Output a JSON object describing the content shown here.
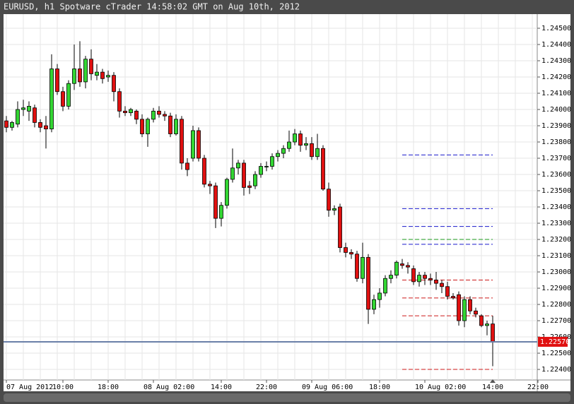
{
  "chart_data": {
    "type": "candlestick",
    "title": "EURUSD, h1 Spotware cTrader 14:58:02 GMT on Aug 10th, 2012",
    "categories": [
      "07 Aug 2012",
      null,
      null,
      null,
      null,
      null,
      null,
      null,
      null,
      null,
      "10:00",
      null,
      null,
      null,
      null,
      null,
      null,
      null,
      "18:00",
      null,
      null,
      null,
      null,
      null,
      null,
      null,
      "08 Aug 02:00",
      null,
      null,
      null,
      null,
      null,
      null,
      null,
      null,
      null,
      null,
      null,
      "14:00",
      null,
      null,
      null,
      null,
      null,
      null,
      null,
      "22:00",
      null,
      null,
      null,
      null,
      null,
      null,
      null,
      "09 Aug 06:00",
      null,
      null,
      null,
      null,
      null,
      null,
      null,
      null,
      null,
      null,
      null,
      "18:00",
      null,
      null,
      null,
      null,
      null,
      null,
      null,
      "10 Aug 02:00",
      null,
      null,
      null,
      null,
      null,
      null,
      null,
      null,
      null,
      null,
      null,
      "14:00",
      null,
      null,
      null,
      null,
      null,
      null,
      null,
      "22:00"
    ],
    "open": [
      1.2393,
      1.2389,
      1.2391,
      1.24,
      1.2399,
      1.2401,
      1.2392,
      1.239,
      1.2388,
      1.2425,
      1.2411,
      1.2402,
      1.2416,
      1.2425,
      1.2417,
      1.2431,
      1.2421,
      1.2423,
      1.242,
      1.2421,
      1.2411,
      1.2399,
      1.2398,
      1.2399,
      1.2394,
      1.2385,
      1.2394,
      1.2399,
      1.2397,
      1.2396,
      1.2385,
      1.2394,
      1.2367,
      1.237,
      1.2387,
      1.237,
      1.2354,
      1.2353,
      1.2333,
      1.2341,
      1.2357,
      1.2364,
      1.2367,
      1.2353,
      1.2353,
      1.236,
      1.2365,
      1.2365,
      1.2371,
      1.2373,
      1.2376,
      1.238,
      1.2385,
      1.2378,
      1.2379,
      1.2371,
      1.2376,
      1.2351,
      1.2338,
      1.234,
      1.2315,
      1.2312,
      1.2311,
      1.2296,
      1.2309,
      1.2277,
      1.2283,
      1.2287,
      1.2296,
      1.2298,
      1.2305,
      1.2304,
      1.2302,
      1.2294,
      1.2298,
      1.2296,
      1.2295,
      1.2293,
      1.2291,
      1.2285,
      1.2286,
      1.227,
      1.2283,
      1.2276,
      1.2273,
      1.2267,
      1.2268,
      null,
      null,
      null,
      null,
      null,
      null,
      null,
      null
    ],
    "high": [
      1.2396,
      1.2393,
      1.2405,
      1.2406,
      1.2405,
      1.2403,
      1.2394,
      1.2396,
      1.2434,
      1.2428,
      1.2414,
      1.2418,
      1.244,
      1.2442,
      1.2433,
      1.2437,
      1.2428,
      1.2425,
      1.2424,
      1.2423,
      1.2413,
      1.2402,
      1.2401,
      1.24,
      1.2397,
      1.2395,
      1.2401,
      1.2402,
      1.2399,
      1.2398,
      1.2397,
      1.2396,
      1.237,
      1.239,
      1.2389,
      1.2372,
      1.2356,
      1.2355,
      1.2343,
      1.2358,
      1.2376,
      1.2369,
      1.2369,
      1.2356,
      1.2362,
      1.2367,
      1.2368,
      1.2373,
      1.2375,
      1.2378,
      1.2387,
      1.2388,
      1.2387,
      1.2383,
      1.2383,
      1.2385,
      1.2378,
      1.2355,
      1.2341,
      1.2342,
      1.2318,
      1.2314,
      1.2313,
      1.2318,
      1.2311,
      1.2286,
      1.229,
      1.2298,
      1.2301,
      1.2307,
      1.2308,
      1.2306,
      1.2304,
      1.23,
      1.23,
      1.2299,
      1.23,
      1.2295,
      1.2294,
      1.2287,
      1.2288,
      1.2285,
      1.2285,
      1.2278,
      1.2274,
      1.227,
      1.2273,
      null,
      null,
      null,
      null,
      null,
      null,
      null,
      null
    ],
    "low": [
      1.2386,
      1.2387,
      1.2389,
      1.2396,
      1.2393,
      1.2389,
      1.2386,
      1.2376,
      1.2386,
      1.2409,
      1.2399,
      1.24,
      1.2412,
      1.2414,
      1.2413,
      1.2418,
      1.2418,
      1.2416,
      1.2417,
      1.2405,
      1.2395,
      1.2396,
      1.2396,
      1.2391,
      1.2383,
      1.2377,
      1.2392,
      1.2395,
      1.2393,
      1.2383,
      1.2384,
      1.2363,
      1.2359,
      1.2368,
      1.2368,
      1.2352,
      1.2348,
      1.2327,
      1.2328,
      1.2339,
      1.2355,
      1.236,
      1.2347,
      1.2348,
      1.2351,
      1.2358,
      1.2362,
      1.2363,
      1.2368,
      1.237,
      1.2374,
      1.2378,
      1.2374,
      1.2375,
      1.2369,
      1.2369,
      1.235,
      1.2334,
      1.2335,
      1.2312,
      1.2309,
      1.2308,
      1.2294,
      1.2293,
      1.2268,
      1.2274,
      1.2278,
      1.2285,
      1.2293,
      1.2296,
      1.2302,
      1.2299,
      1.2292,
      1.2291,
      1.2292,
      1.2292,
      1.2289,
      1.2287,
      1.2283,
      1.2283,
      1.2267,
      1.2266,
      1.2274,
      1.2272,
      1.2266,
      1.2261,
      1.2242,
      null,
      null,
      null,
      null,
      null,
      null,
      null,
      null
    ],
    "close": [
      1.2389,
      1.2392,
      1.24,
      1.2401,
      1.2402,
      1.2392,
      1.2389,
      1.2388,
      1.2425,
      1.2411,
      1.2402,
      1.2416,
      1.2425,
      1.2417,
      1.2431,
      1.2422,
      1.2423,
      1.2419,
      1.2421,
      1.2411,
      1.2399,
      1.2398,
      1.24,
      1.2394,
      1.2385,
      1.2394,
      1.2399,
      1.2397,
      1.2396,
      1.2385,
      1.2394,
      1.2367,
      1.2363,
      1.2387,
      1.237,
      1.2354,
      1.2353,
      1.2333,
      1.2341,
      1.2357,
      1.2364,
      1.2367,
      1.2352,
      1.2352,
      1.236,
      1.2365,
      1.2365,
      1.2371,
      1.2373,
      1.2376,
      1.238,
      1.2385,
      1.2378,
      1.2379,
      1.2371,
      1.2376,
      1.2351,
      1.2338,
      1.2339,
      1.2315,
      1.2312,
      1.2311,
      1.2296,
      1.2309,
      1.2277,
      1.2283,
      1.2287,
      1.2296,
      1.2298,
      1.2306,
      1.2304,
      1.2303,
      1.2294,
      1.2298,
      1.2296,
      1.2295,
      1.2293,
      1.2291,
      1.2285,
      1.2284,
      1.227,
      1.2283,
      1.2276,
      1.2274,
      1.2267,
      1.2268,
      1.2257,
      null,
      null,
      null,
      null,
      null,
      null,
      null,
      null
    ],
    "up_color": "#33d633",
    "down_color": "#e01010",
    "ylim": [
      1.22335,
      1.24587
    ],
    "yticks": [
      {
        "value": 1.224,
        "label": "1.22400"
      },
      {
        "value": 1.225,
        "label": "1.22500"
      },
      {
        "value": 1.226,
        "label": "1.22600"
      },
      {
        "value": 1.227,
        "label": "1.22700"
      },
      {
        "value": 1.228,
        "label": "1.22800"
      },
      {
        "value": 1.229,
        "label": "1.22900"
      },
      {
        "value": 1.23,
        "label": "1.23000"
      },
      {
        "value": 1.231,
        "label": "1.23100"
      },
      {
        "value": 1.232,
        "label": "1.23200"
      },
      {
        "value": 1.233,
        "label": "1.23300"
      },
      {
        "value": 1.234,
        "label": "1.23400"
      },
      {
        "value": 1.235,
        "label": "1.23500"
      },
      {
        "value": 1.236,
        "label": "1.23600"
      },
      {
        "value": 1.237,
        "label": "1.23700"
      },
      {
        "value": 1.238,
        "label": "1.23800"
      },
      {
        "value": 1.239,
        "label": "1.23900"
      },
      {
        "value": 1.24,
        "label": "1.24000"
      },
      {
        "value": 1.241,
        "label": "1.24100"
      },
      {
        "value": 1.242,
        "label": "1.24200"
      },
      {
        "value": 1.243,
        "label": "1.24300"
      },
      {
        "value": 1.244,
        "label": "1.24400"
      },
      {
        "value": 1.245,
        "label": "1.24500"
      }
    ],
    "grid": true,
    "current_price": {
      "value": 1.2257,
      "label": "1.22570"
    },
    "levels": [
      {
        "value": 1.2372,
        "color": "#1a1acc"
      },
      {
        "value": 1.2339,
        "color": "#1a1acc"
      },
      {
        "value": 1.2328,
        "color": "#1a1acc"
      },
      {
        "value": 1.2317,
        "color": "#1a1acc"
      },
      {
        "value": 1.232,
        "color": "#1a9a1a"
      },
      {
        "value": 1.2295,
        "color": "#cc1a1a"
      },
      {
        "value": 1.2284,
        "color": "#cc1a1a"
      },
      {
        "value": 1.2273,
        "color": "#cc1a1a"
      },
      {
        "value": 1.224,
        "color": "#cc1a1a"
      }
    ]
  }
}
